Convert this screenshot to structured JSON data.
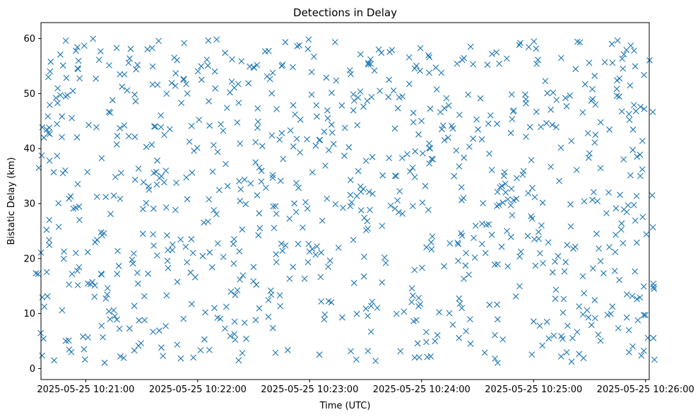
{
  "chart_data": {
    "type": "scatter",
    "title": "Detections in Delay",
    "xlabel": "Time (UTC)",
    "ylabel": "Bistatic Delay (km)",
    "x_domain": [
      "2025-05-25 10:20:33",
      "2025-05-25 10:26:05"
    ],
    "xlim": [
      "2025-05-25 10:20:36",
      "2025-05-25 10:26:02"
    ],
    "ylim": [
      -2.0,
      62.9
    ],
    "x_ticks": [
      "2025-05-25 10:21:00",
      "2025-05-25 10:22:00",
      "2025-05-25 10:23:00",
      "2025-05-25 10:24:00",
      "2025-05-25 10:25:00",
      "2025-05-25 10:26:00"
    ],
    "x_tick_labels": [
      "2025-05-25 10:21:00",
      "2025-05-25 10:22:00",
      "2025-05-25 10:23:00",
      "2025-05-25 10:24:00",
      "2025-05-25 10:25:00",
      "2025-05-25 10:26:00"
    ],
    "y_ticks": [
      0,
      10,
      20,
      30,
      40,
      50,
      60
    ],
    "y_tick_labels": [
      "0",
      "10",
      "20",
      "30",
      "40",
      "50",
      "60"
    ],
    "grid": false,
    "legend": "none",
    "marker": "x",
    "color": "#1f77b4",
    "point_count": 900,
    "y_range_of_points": [
      1,
      60
    ]
  }
}
